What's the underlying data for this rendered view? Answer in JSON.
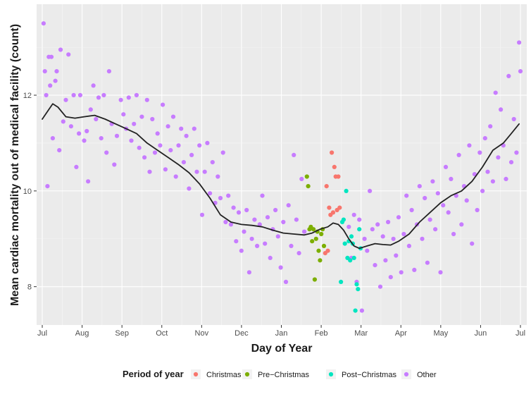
{
  "chart_data": {
    "type": "scatter",
    "xlabel": "Day of Year",
    "ylabel": "Mean cardiac mortality out of medical facility (count)",
    "x_ticks": [
      "Jul",
      "Aug",
      "Sep",
      "Oct",
      "Nov",
      "Dec",
      "Jan",
      "Feb",
      "Mar",
      "Apr",
      "May",
      "Jun",
      "Jul"
    ],
    "y_ticks": [
      8,
      10,
      12
    ],
    "xlim": [
      0,
      365
    ],
    "ylim": [
      7.2,
      13.9
    ],
    "grid": true,
    "legend": {
      "title": "Period of year",
      "position": "bottom",
      "entries": [
        "Christmas",
        "Pre−Christmas",
        "Post−Christmas",
        "Other"
      ]
    },
    "colors": {
      "Christmas": "#f8766d",
      "Pre−Christmas": "#7cae00",
      "Post−Christmas": "#00e5c0",
      "Other": "#c77cff",
      "smooth": "#222222",
      "panel": "#ebebeb",
      "grid": "#ffffff"
    },
    "series": [
      {
        "name": "Other",
        "points": [
          [
            1,
            13.5
          ],
          [
            2,
            12.5
          ],
          [
            3,
            12.0
          ],
          [
            4,
            10.1
          ],
          [
            5,
            12.8
          ],
          [
            6,
            12.2
          ],
          [
            7,
            12.8
          ],
          [
            8,
            11.1
          ],
          [
            10,
            12.3
          ],
          [
            11,
            12.5
          ],
          [
            13,
            10.85
          ],
          [
            14,
            12.95
          ],
          [
            16,
            11.45
          ],
          [
            18,
            11.9
          ],
          [
            20,
            12.85
          ],
          [
            22,
            11.35
          ],
          [
            24,
            12.0
          ],
          [
            26,
            10.5
          ],
          [
            28,
            11.2
          ],
          [
            29,
            12.0
          ],
          [
            32,
            11.05
          ],
          [
            34,
            11.25
          ],
          [
            35,
            10.2
          ],
          [
            37,
            11.7
          ],
          [
            39,
            12.2
          ],
          [
            41,
            11.5
          ],
          [
            43,
            11.95
          ],
          [
            45,
            11.1
          ],
          [
            47,
            12.0
          ],
          [
            49,
            10.8
          ],
          [
            51,
            12.5
          ],
          [
            53,
            11.4
          ],
          [
            55,
            10.55
          ],
          [
            57,
            11.15
          ],
          [
            60,
            11.9
          ],
          [
            62,
            11.6
          ],
          [
            64,
            11.3
          ],
          [
            66,
            11.95
          ],
          [
            68,
            11.05
          ],
          [
            70,
            11.4
          ],
          [
            72,
            12.0
          ],
          [
            74,
            10.9
          ],
          [
            76,
            11.55
          ],
          [
            78,
            10.7
          ],
          [
            80,
            11.9
          ],
          [
            82,
            10.4
          ],
          [
            84,
            11.5
          ],
          [
            86,
            10.8
          ],
          [
            88,
            11.2
          ],
          [
            90,
            10.95
          ],
          [
            92,
            11.8
          ],
          [
            94,
            10.45
          ],
          [
            96,
            11.35
          ],
          [
            98,
            10.85
          ],
          [
            100,
            11.55
          ],
          [
            102,
            10.3
          ],
          [
            104,
            10.95
          ],
          [
            106,
            11.3
          ],
          [
            108,
            10.6
          ],
          [
            110,
            11.15
          ],
          [
            112,
            10.05
          ],
          [
            114,
            10.75
          ],
          [
            116,
            11.3
          ],
          [
            118,
            10.4
          ],
          [
            120,
            10.95
          ],
          [
            122,
            9.5
          ],
          [
            124,
            10.4
          ],
          [
            126,
            11.0
          ],
          [
            128,
            9.95
          ],
          [
            130,
            10.6
          ],
          [
            132,
            9.75
          ],
          [
            134,
            10.3
          ],
          [
            136,
            9.85
          ],
          [
            138,
            10.8
          ],
          [
            140,
            9.35
          ],
          [
            142,
            9.9
          ],
          [
            144,
            9.3
          ],
          [
            146,
            9.65
          ],
          [
            148,
            8.95
          ],
          [
            150,
            9.55
          ],
          [
            152,
            8.75
          ],
          [
            154,
            9.15
          ],
          [
            156,
            9.6
          ],
          [
            158,
            8.3
          ],
          [
            160,
            9.0
          ],
          [
            162,
            9.4
          ],
          [
            164,
            8.85
          ],
          [
            166,
            9.3
          ],
          [
            168,
            9.9
          ],
          [
            170,
            8.9
          ],
          [
            172,
            9.45
          ],
          [
            174,
            8.6
          ],
          [
            176,
            9.2
          ],
          [
            178,
            9.6
          ],
          [
            180,
            9.05
          ],
          [
            182,
            8.4
          ],
          [
            184,
            9.35
          ],
          [
            186,
            8.1
          ],
          [
            188,
            9.7
          ],
          [
            190,
            8.85
          ],
          [
            192,
            10.75
          ],
          [
            194,
            9.4
          ],
          [
            196,
            8.7
          ],
          [
            198,
            10.25
          ],
          [
            200,
            9.15
          ],
          [
            234,
            9.25
          ],
          [
            236,
            8.6
          ],
          [
            238,
            9.5
          ],
          [
            240,
            8.1
          ],
          [
            242,
            9.4
          ],
          [
            244,
            7.5
          ],
          [
            246,
            9.0
          ],
          [
            248,
            8.75
          ],
          [
            250,
            10.0
          ],
          [
            252,
            9.2
          ],
          [
            254,
            8.45
          ],
          [
            256,
            9.3
          ],
          [
            258,
            8.0
          ],
          [
            260,
            9.05
          ],
          [
            262,
            8.55
          ],
          [
            264,
            9.35
          ],
          [
            266,
            8.2
          ],
          [
            268,
            9.0
          ],
          [
            270,
            8.65
          ],
          [
            272,
            9.45
          ],
          [
            274,
            8.3
          ],
          [
            276,
            9.1
          ],
          [
            278,
            9.9
          ],
          [
            280,
            8.85
          ],
          [
            282,
            9.6
          ],
          [
            284,
            8.35
          ],
          [
            286,
            9.3
          ],
          [
            288,
            10.1
          ],
          [
            290,
            9.0
          ],
          [
            292,
            9.85
          ],
          [
            294,
            8.5
          ],
          [
            296,
            9.4
          ],
          [
            298,
            10.2
          ],
          [
            300,
            9.2
          ],
          [
            302,
            9.95
          ],
          [
            304,
            8.3
          ],
          [
            306,
            9.7
          ],
          [
            308,
            10.5
          ],
          [
            310,
            9.55
          ],
          [
            312,
            10.25
          ],
          [
            314,
            9.1
          ],
          [
            316,
            9.9
          ],
          [
            318,
            10.75
          ],
          [
            320,
            9.3
          ],
          [
            322,
            10.1
          ],
          [
            324,
            9.8
          ],
          [
            326,
            10.95
          ],
          [
            328,
            8.9
          ],
          [
            330,
            10.35
          ],
          [
            332,
            9.6
          ],
          [
            334,
            10.8
          ],
          [
            336,
            10.0
          ],
          [
            338,
            11.1
          ],
          [
            340,
            10.4
          ],
          [
            342,
            11.35
          ],
          [
            344,
            10.2
          ],
          [
            346,
            12.05
          ],
          [
            348,
            10.7
          ],
          [
            350,
            11.7
          ],
          [
            352,
            10.95
          ],
          [
            354,
            10.25
          ],
          [
            356,
            12.4
          ],
          [
            358,
            10.6
          ],
          [
            360,
            11.5
          ],
          [
            362,
            10.8
          ],
          [
            364,
            13.1
          ],
          [
            365,
            12.5
          ]
        ]
      },
      {
        "name": "Pre−Christmas",
        "points": [
          [
            202,
            10.3
          ],
          [
            203,
            10.1
          ],
          [
            204,
            9.2
          ],
          [
            205,
            9.25
          ],
          [
            206,
            8.95
          ],
          [
            207,
            9.2
          ],
          [
            208,
            8.15
          ],
          [
            209,
            9.0
          ],
          [
            210,
            9.15
          ],
          [
            211,
            8.75
          ],
          [
            212,
            8.55
          ],
          [
            213,
            9.1
          ],
          [
            214,
            9.2
          ],
          [
            215,
            8.85
          ]
        ]
      },
      {
        "name": "Christmas",
        "points": [
          [
            216,
            8.7
          ],
          [
            217,
            10.1
          ],
          [
            218,
            8.75
          ],
          [
            219,
            9.65
          ],
          [
            220,
            9.5
          ],
          [
            221,
            10.8
          ],
          [
            222,
            9.55
          ],
          [
            223,
            10.5
          ],
          [
            224,
            10.3
          ],
          [
            225,
            9.6
          ],
          [
            226,
            10.3
          ],
          [
            227,
            9.65
          ]
        ]
      },
      {
        "name": "Post−Christmas",
        "points": [
          [
            228,
            8.1
          ],
          [
            229,
            9.35
          ],
          [
            230,
            9.4
          ],
          [
            231,
            8.9
          ],
          [
            232,
            10.0
          ],
          [
            233,
            8.6
          ],
          [
            234,
            8.95
          ],
          [
            235,
            8.55
          ],
          [
            236,
            9.05
          ],
          [
            237,
            8.9
          ],
          [
            238,
            8.6
          ],
          [
            239,
            7.5
          ],
          [
            240,
            8.05
          ],
          [
            241,
            7.95
          ],
          [
            242,
            9.2
          ],
          [
            243,
            8.8
          ]
        ]
      }
    ],
    "smooth_line": {
      "points": [
        [
          0,
          11.5
        ],
        [
          5,
          11.7
        ],
        [
          8,
          11.82
        ],
        [
          12,
          11.75
        ],
        [
          18,
          11.55
        ],
        [
          25,
          11.52
        ],
        [
          32,
          11.55
        ],
        [
          40,
          11.58
        ],
        [
          48,
          11.5
        ],
        [
          56,
          11.4
        ],
        [
          64,
          11.3
        ],
        [
          72,
          11.2
        ],
        [
          80,
          11.0
        ],
        [
          88,
          10.85
        ],
        [
          96,
          10.7
        ],
        [
          104,
          10.55
        ],
        [
          112,
          10.38
        ],
        [
          120,
          10.15
        ],
        [
          128,
          9.85
        ],
        [
          136,
          9.5
        ],
        [
          144,
          9.35
        ],
        [
          152,
          9.3
        ],
        [
          160,
          9.28
        ],
        [
          168,
          9.25
        ],
        [
          176,
          9.18
        ],
        [
          184,
          9.12
        ],
        [
          192,
          9.1
        ],
        [
          200,
          9.08
        ],
        [
          206,
          9.12
        ],
        [
          212,
          9.2
        ],
        [
          218,
          9.25
        ],
        [
          222,
          9.33
        ],
        [
          226,
          9.3
        ],
        [
          230,
          9.18
        ],
        [
          234,
          9.0
        ],
        [
          238,
          8.85
        ],
        [
          242,
          8.8
        ],
        [
          248,
          8.85
        ],
        [
          254,
          8.9
        ],
        [
          260,
          8.88
        ],
        [
          266,
          8.87
        ],
        [
          272,
          8.95
        ],
        [
          280,
          9.1
        ],
        [
          288,
          9.35
        ],
        [
          296,
          9.55
        ],
        [
          304,
          9.75
        ],
        [
          312,
          9.9
        ],
        [
          320,
          10.0
        ],
        [
          328,
          10.2
        ],
        [
          336,
          10.5
        ],
        [
          344,
          10.85
        ],
        [
          352,
          11.0
        ],
        [
          358,
          11.2
        ],
        [
          364,
          11.4
        ]
      ]
    }
  }
}
